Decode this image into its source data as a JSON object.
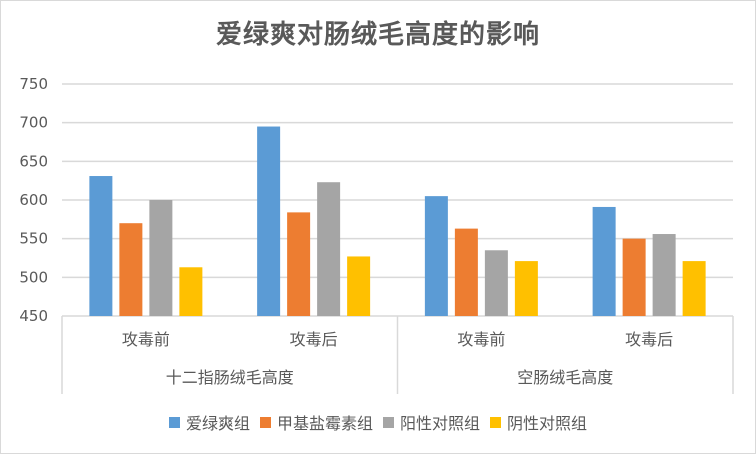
{
  "chart_data": {
    "type": "bar",
    "title": "爱绿爽对肠绒毛高度的影响",
    "xlabel": "",
    "ylabel": "",
    "ylim": [
      450,
      750
    ],
    "yticks": [
      450,
      500,
      550,
      600,
      650,
      700,
      750
    ],
    "grid": true,
    "legend_position": "bottom",
    "category_groups": [
      {
        "label": "十二指肠绒毛高度",
        "categories": [
          "攻毒前",
          "攻毒后"
        ]
      },
      {
        "label": "空肠绒毛高度",
        "categories": [
          "攻毒前",
          "攻毒后"
        ]
      }
    ],
    "categories": [
      "十二指肠绒毛高度-攻毒前",
      "十二指肠绒毛高度-攻毒后",
      "空肠绒毛高度-攻毒前",
      "空肠绒毛高度-攻毒后"
    ],
    "series": [
      {
        "name": "爱绿爽组",
        "color": "#5b9bd5",
        "values": [
          631,
          695,
          605,
          591
        ]
      },
      {
        "name": "甲基盐霉素组",
        "color": "#ed7d31",
        "values": [
          570,
          584,
          563,
          550
        ]
      },
      {
        "name": "阳性对照组",
        "color": "#a5a5a5",
        "values": [
          600,
          623,
          535,
          556
        ]
      },
      {
        "name": "阴性对照组",
        "color": "#ffc000",
        "values": [
          513,
          527,
          521,
          521
        ]
      }
    ]
  },
  "legend": {
    "items": [
      {
        "label": "爱绿爽组",
        "color": "#5b9bd5"
      },
      {
        "label": "甲基盐霉素组",
        "color": "#ed7d31"
      },
      {
        "label": "阳性对照组",
        "color": "#a5a5a5"
      },
      {
        "label": "阴性对照组",
        "color": "#ffc000"
      }
    ]
  }
}
